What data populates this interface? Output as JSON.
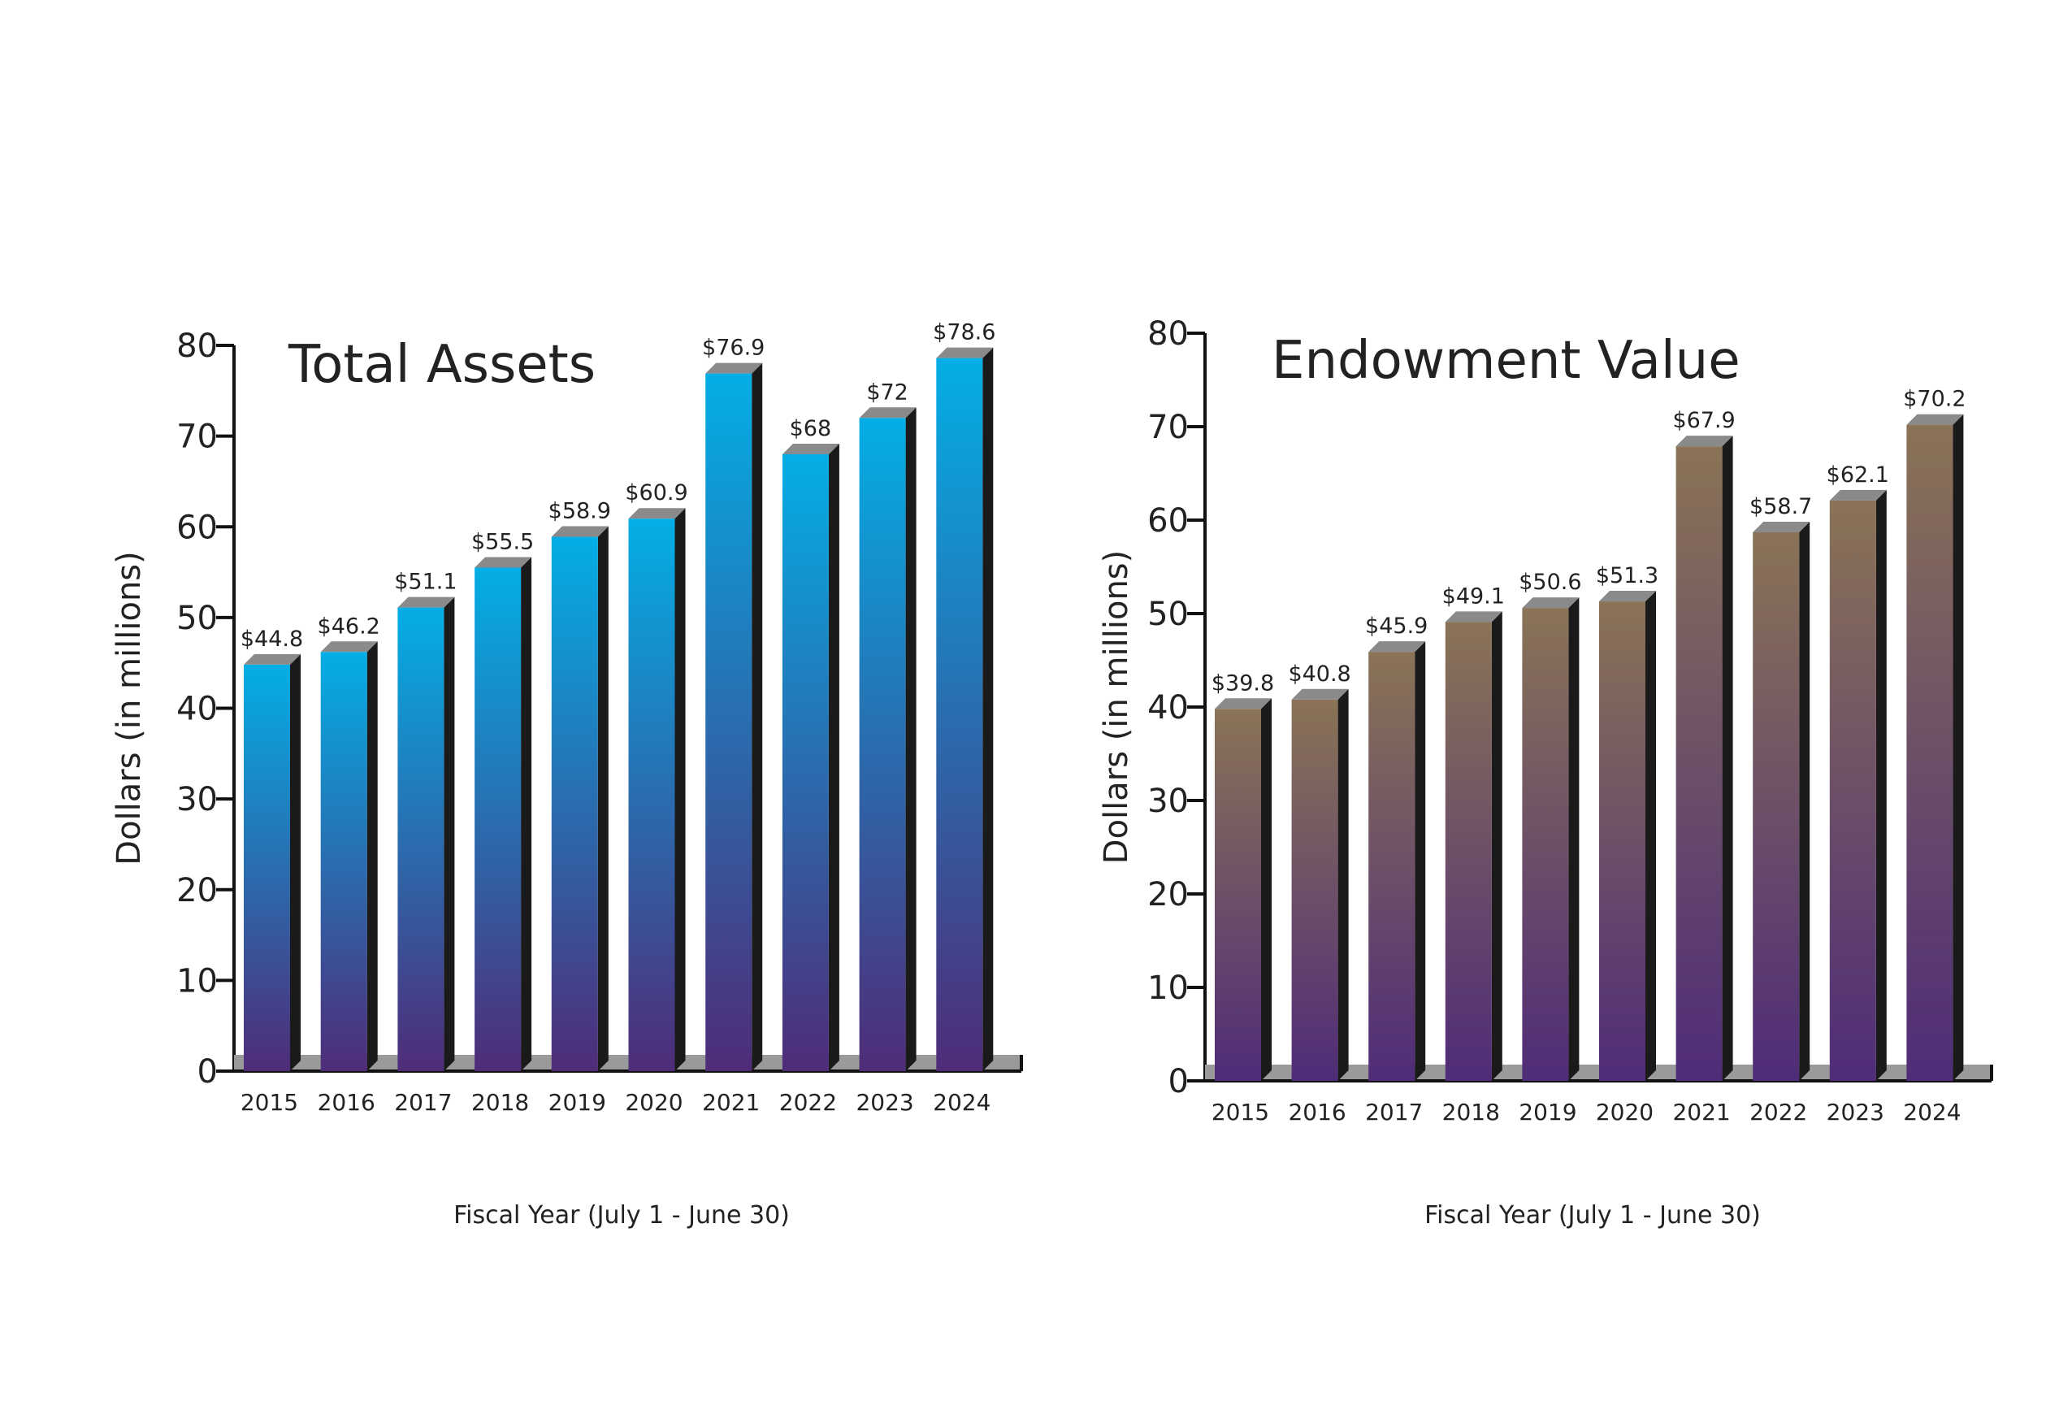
{
  "chart_data": [
    {
      "type": "bar",
      "title": "Total Assets",
      "xlabel": "Fiscal Year (July 1 - June 30)",
      "ylabel": "Dollars (in millions)",
      "ylim": [
        0,
        80
      ],
      "yticks": [
        "0",
        "10",
        "20",
        "30",
        "40",
        "50",
        "60",
        "70",
        "80"
      ],
      "categories": [
        "2015",
        "2016",
        "2017",
        "2018",
        "2019",
        "2020",
        "2021",
        "2022",
        "2023",
        "2024"
      ],
      "values": [
        44.8,
        46.2,
        51.1,
        55.5,
        58.9,
        60.9,
        76.9,
        68,
        72,
        78.6
      ],
      "data_labels": [
        "$44.8",
        "$46.2",
        "$51.1",
        "$55.5",
        "$58.9",
        "$60.9",
        "$76.9",
        "$68",
        "$72",
        "$78.6"
      ],
      "colors": {
        "top": "#04aee6",
        "bottom": "#4f2c78",
        "side": "#1a1a1a",
        "cap": "#8a8a8a",
        "base": "#9a9a9a"
      },
      "grid": false,
      "legend": "none"
    },
    {
      "type": "bar",
      "title": "Endowment Value",
      "xlabel": "Fiscal Year (July 1 - June 30)",
      "ylabel": "Dollars (in millions)",
      "ylim": [
        0,
        80
      ],
      "yticks": [
        "0",
        "10",
        "20",
        "30",
        "40",
        "50",
        "60",
        "70",
        "80"
      ],
      "categories": [
        "2015",
        "2016",
        "2017",
        "2018",
        "2019",
        "2020",
        "2021",
        "2022",
        "2023",
        "2024"
      ],
      "values": [
        39.8,
        40.8,
        45.9,
        49.1,
        50.6,
        51.3,
        67.9,
        58.7,
        62.1,
        70.2
      ],
      "data_labels": [
        "$39.8",
        "$40.8",
        "$45.9",
        "$49.1",
        "$50.6",
        "$51.3",
        "$67.9",
        "$58.7",
        "$62.1",
        "$70.2"
      ],
      "colors": {
        "top": "#8a7356",
        "bottom": "#4f2c78",
        "side": "#1a1a1a",
        "cap": "#8a8a8a",
        "base": "#9a9a9a"
      },
      "grid": false,
      "legend": "none"
    }
  ]
}
